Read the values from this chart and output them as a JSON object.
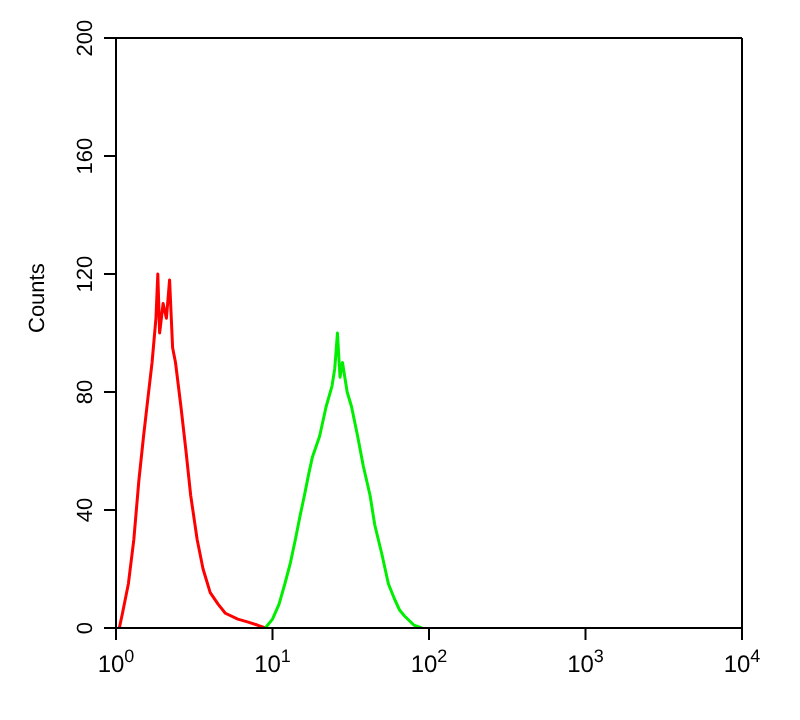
{
  "chart_data": {
    "type": "line",
    "ylabel": "Counts",
    "log": "x",
    "xlim": [
      1,
      10000
    ],
    "ylim": [
      0,
      200
    ],
    "xticks": [
      {
        "value": 1,
        "label": "10$^{0}$"
      },
      {
        "value": 10,
        "label": "10$^{1}$"
      },
      {
        "value": 100,
        "label": "10$^{2}$"
      },
      {
        "value": 1000,
        "label": "10$^{3}$"
      },
      {
        "value": 10000,
        "label": "10$^{4}$"
      }
    ],
    "yticks": [
      0,
      40,
      80,
      120,
      160,
      200
    ],
    "marker": "none",
    "line_style": "solid",
    "series": [
      {
        "color": "#ff0000",
        "x": [
          1.05,
          1.1,
          1.2,
          1.3,
          1.4,
          1.5,
          1.6,
          1.7,
          1.8,
          1.85,
          1.9,
          2.0,
          2.1,
          2.2,
          2.3,
          2.4,
          2.6,
          2.8,
          3.0,
          3.3,
          3.6,
          4.0,
          4.5,
          5,
          6,
          7,
          8,
          9
        ],
        "values": [
          0,
          5,
          15,
          30,
          50,
          65,
          78,
          90,
          105,
          120,
          100,
          110,
          105,
          118,
          95,
          90,
          75,
          60,
          45,
          30,
          20,
          12,
          8,
          5,
          3,
          2,
          1,
          0
        ]
      },
      {
        "color": "#00ee00",
        "x": [
          9,
          10,
          11,
          12,
          13,
          14,
          15,
          16,
          17,
          18,
          20,
          22,
          24,
          25,
          26,
          27,
          28,
          30,
          32,
          35,
          38,
          42,
          45,
          50,
          55,
          60,
          65,
          70,
          80,
          90
        ],
        "values": [
          0,
          3,
          8,
          15,
          22,
          30,
          38,
          45,
          52,
          58,
          65,
          75,
          82,
          88,
          100,
          85,
          90,
          80,
          75,
          65,
          55,
          45,
          35,
          25,
          15,
          10,
          6,
          4,
          1,
          0
        ]
      }
    ]
  }
}
